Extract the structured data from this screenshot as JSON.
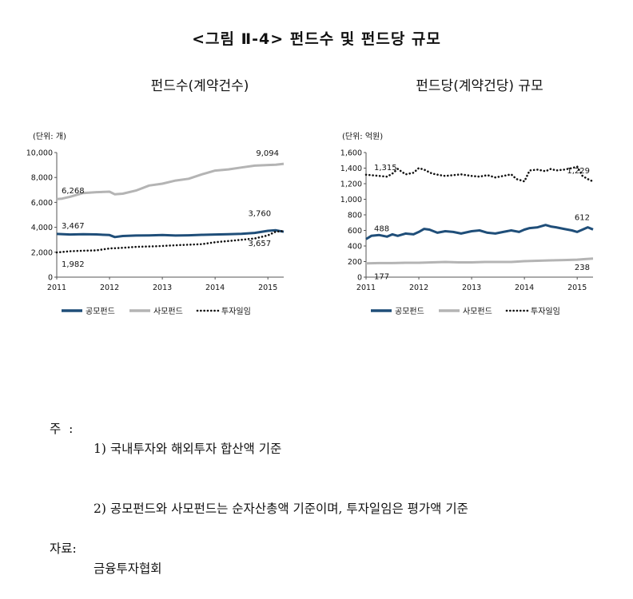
{
  "figure_title": "<그림 Ⅱ-4> 펀드수 및 펀드당 규모",
  "notes": [
    {
      "prefix": "주  :",
      "text": "1) 국내투자와 해외투자 합산액 기준"
    },
    {
      "prefix": "",
      "text": "2) 공모펀드와 사모펀드는 순자산총액 기준이며, 투자일임은 평가액 기준"
    },
    {
      "prefix": "자료:",
      "text": "금융투자협회"
    }
  ],
  "chart_data": [
    {
      "type": "line",
      "title": "펀드수(계약건수)",
      "unit_label": "(단위: 개)",
      "x_ticks": [
        "2011",
        "2012",
        "2013",
        "2014",
        "2015"
      ],
      "x_range": [
        2011,
        2015.3
      ],
      "y_ticks": [
        "0",
        "2,000",
        "4,000",
        "6,000",
        "8,000",
        "10,000"
      ],
      "ylim": [
        0,
        10000
      ],
      "colors": {
        "공모펀드": "#1f4e79",
        "사모펀드": "#b4b4b4",
        "투자일임": "#111111"
      },
      "series": [
        {
          "name": "공모펀드",
          "style": "solid",
          "x": [
            2011,
            2011.25,
            2011.5,
            2011.75,
            2012,
            2012.1,
            2012.25,
            2012.5,
            2012.75,
            2013,
            2013.25,
            2013.5,
            2013.75,
            2014,
            2014.25,
            2014.5,
            2014.75,
            2015,
            2015.15,
            2015.3
          ],
          "values": [
            3467,
            3420,
            3440,
            3430,
            3380,
            3220,
            3300,
            3340,
            3350,
            3380,
            3340,
            3360,
            3400,
            3420,
            3450,
            3480,
            3550,
            3720,
            3760,
            3640
          ]
        },
        {
          "name": "사모펀드",
          "style": "solid",
          "x": [
            2011,
            2011.1,
            2011.25,
            2011.5,
            2011.75,
            2012,
            2012.1,
            2012.25,
            2012.5,
            2012.75,
            2013,
            2013.25,
            2013.5,
            2013.75,
            2014,
            2014.25,
            2014.5,
            2014.75,
            2015,
            2015.15,
            2015.3
          ],
          "values": [
            6268,
            6300,
            6450,
            6750,
            6820,
            6860,
            6650,
            6700,
            6950,
            7350,
            7500,
            7750,
            7900,
            8250,
            8550,
            8650,
            8800,
            8950,
            9000,
            9020,
            9094
          ]
        },
        {
          "name": "투자일임",
          "style": "dotted",
          "x": [
            2011,
            2011.25,
            2011.5,
            2011.75,
            2012,
            2012.25,
            2012.5,
            2012.75,
            2013,
            2013.25,
            2013.5,
            2013.75,
            2014,
            2014.25,
            2014.5,
            2014.75,
            2015,
            2015.15,
            2015.3
          ],
          "values": [
            1982,
            2080,
            2120,
            2150,
            2300,
            2350,
            2430,
            2460,
            2500,
            2560,
            2600,
            2650,
            2800,
            2900,
            3000,
            3100,
            3350,
            3657,
            3700
          ]
        }
      ],
      "annotations": [
        {
          "text": "9,094",
          "series": "사모펀드",
          "x": 2015.3,
          "y": 9094
        },
        {
          "text": "6,268",
          "series": "사모펀드",
          "x": 2011,
          "y": 6268
        },
        {
          "text": "3,467",
          "series": "공모펀드",
          "x": 2011,
          "y": 3467
        },
        {
          "text": "3,760",
          "series": "공모펀드",
          "x": 2015.15,
          "y": 3760
        },
        {
          "text": "3,657",
          "series": "투자일임",
          "x": 2015.15,
          "y": 3657
        },
        {
          "text": "1,982",
          "series": "투자일임",
          "x": 2011,
          "y": 1982
        }
      ],
      "legend": [
        {
          "name": "공모펀드",
          "style": "solid"
        },
        {
          "name": "사모펀드",
          "style": "solid"
        },
        {
          "name": "투자일임",
          "style": "dotted"
        }
      ],
      "legend_position": "bottom",
      "grid": false
    },
    {
      "type": "line",
      "title": "펀드당(계약건당) 규모",
      "unit_label": "(단위: 억원)",
      "x_ticks": [
        "2011",
        "2012",
        "2013",
        "2014",
        "2015"
      ],
      "x_range": [
        2011,
        2015.3
      ],
      "y_ticks": [
        "0",
        "200",
        "400",
        "600",
        "800",
        "1,000",
        "1,200",
        "1,400",
        "1,600"
      ],
      "ylim": [
        0,
        1600
      ],
      "colors": {
        "공모펀드": "#1f4e79",
        "사모펀드": "#b4b4b4",
        "투자일임": "#111111"
      },
      "series": [
        {
          "name": "공모펀드",
          "style": "solid",
          "x": [
            2011,
            2011.1,
            2011.25,
            2011.4,
            2011.5,
            2011.6,
            2011.75,
            2011.9,
            2012,
            2012.1,
            2012.2,
            2012.35,
            2012.5,
            2012.65,
            2012.8,
            2013,
            2013.15,
            2013.3,
            2013.45,
            2013.6,
            2013.75,
            2013.9,
            2014,
            2014.1,
            2014.25,
            2014.4,
            2014.5,
            2014.6,
            2014.75,
            2014.9,
            2015,
            2015.1,
            2015.2,
            2015.3
          ],
          "values": [
            488,
            530,
            540,
            520,
            550,
            530,
            560,
            550,
            580,
            620,
            610,
            570,
            590,
            580,
            560,
            590,
            600,
            570,
            560,
            580,
            600,
            580,
            610,
            630,
            640,
            670,
            650,
            640,
            620,
            600,
            580,
            610,
            640,
            612
          ]
        },
        {
          "name": "사모펀드",
          "style": "solid",
          "x": [
            2011,
            2011.25,
            2011.5,
            2011.75,
            2012,
            2012.25,
            2012.5,
            2012.75,
            2013,
            2013.25,
            2013.5,
            2013.75,
            2014,
            2014.25,
            2014.5,
            2014.75,
            2015,
            2015.15,
            2015.3
          ],
          "values": [
            177,
            180,
            180,
            185,
            185,
            190,
            195,
            190,
            190,
            195,
            195,
            195,
            205,
            210,
            215,
            220,
            225,
            232,
            238
          ]
        },
        {
          "name": "투자일임",
          "style": "dotted",
          "x": [
            2011,
            2011.1,
            2011.25,
            2011.4,
            2011.5,
            2011.6,
            2011.75,
            2011.9,
            2012,
            2012.1,
            2012.25,
            2012.4,
            2012.5,
            2012.65,
            2012.8,
            2013,
            2013.15,
            2013.3,
            2013.45,
            2013.6,
            2013.75,
            2013.85,
            2013.95,
            2014,
            2014.1,
            2014.25,
            2014.4,
            2014.5,
            2014.6,
            2014.75,
            2014.9,
            2015,
            2015.1,
            2015.2,
            2015.3
          ],
          "values": [
            1315,
            1310,
            1300,
            1290,
            1330,
            1390,
            1320,
            1340,
            1400,
            1380,
            1330,
            1310,
            1300,
            1310,
            1320,
            1300,
            1290,
            1310,
            1280,
            1300,
            1320,
            1260,
            1240,
            1230,
            1370,
            1380,
            1360,
            1390,
            1370,
            1380,
            1400,
            1420,
            1300,
            1260,
            1229
          ]
        }
      ],
      "annotations": [
        {
          "text": "1,315",
          "series": "투자일임",
          "x": 2011,
          "y": 1315
        },
        {
          "text": "1,229",
          "series": "투자일임",
          "x": 2015.3,
          "y": 1229
        },
        {
          "text": "488",
          "series": "공모펀드",
          "x": 2011,
          "y": 488
        },
        {
          "text": "612",
          "series": "공모펀드",
          "x": 2015.3,
          "y": 612
        },
        {
          "text": "177",
          "series": "사모펀드",
          "x": 2011,
          "y": 177
        },
        {
          "text": "238",
          "series": "사모펀드",
          "x": 2015.3,
          "y": 238
        }
      ],
      "legend": [
        {
          "name": "공모펀드",
          "style": "solid"
        },
        {
          "name": "사모펀드",
          "style": "solid"
        },
        {
          "name": "투자일임",
          "style": "dotted"
        }
      ],
      "legend_position": "bottom",
      "grid": false
    }
  ]
}
